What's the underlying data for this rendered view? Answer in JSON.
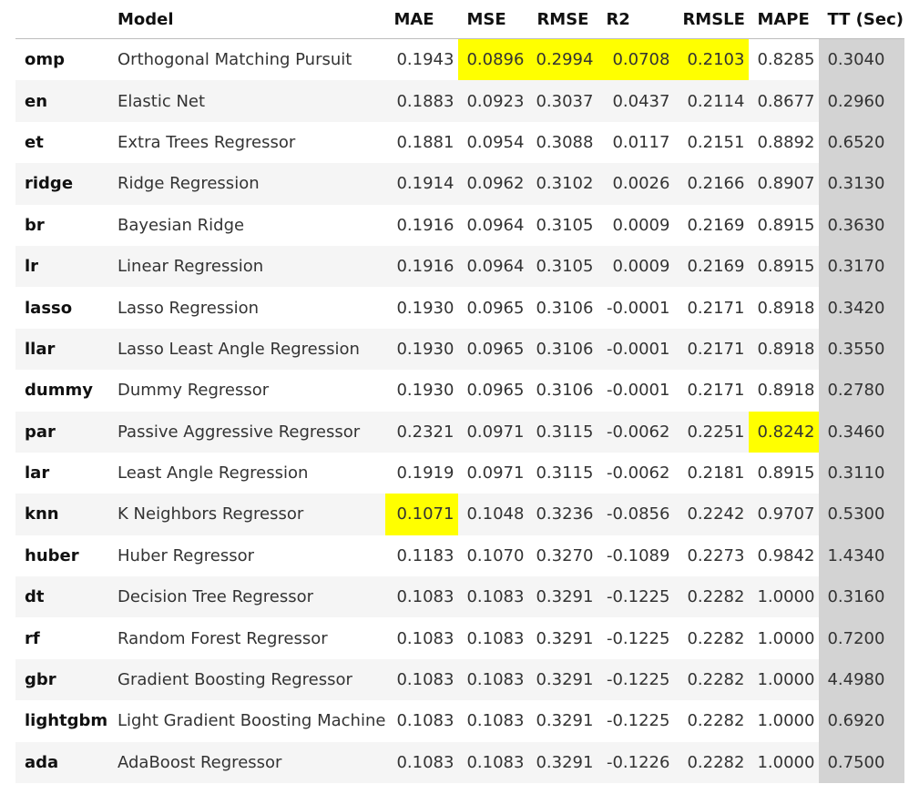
{
  "table": {
    "columns": [
      "",
      "Model",
      "MAE",
      "MSE",
      "RMSE",
      "R2",
      "RMSLE",
      "MAPE",
      "TT (Sec)"
    ],
    "colors": {
      "highlight": "#ffff00",
      "tt_column": "#d3d3d3",
      "stripe": "#f5f5f5"
    },
    "rows": [
      {
        "id": "omp",
        "model": "Orthogonal Matching Pursuit",
        "values": [
          "0.1943",
          "0.0896",
          "0.2994",
          "0.0708",
          "0.2103",
          "0.8285",
          "0.3040"
        ],
        "highlight": [
          1,
          2,
          3,
          4
        ]
      },
      {
        "id": "en",
        "model": "Elastic Net",
        "values": [
          "0.1883",
          "0.0923",
          "0.3037",
          "0.0437",
          "0.2114",
          "0.8677",
          "0.2960"
        ],
        "highlight": []
      },
      {
        "id": "et",
        "model": "Extra Trees Regressor",
        "values": [
          "0.1881",
          "0.0954",
          "0.3088",
          "0.0117",
          "0.2151",
          "0.8892",
          "0.6520"
        ],
        "highlight": []
      },
      {
        "id": "ridge",
        "model": "Ridge Regression",
        "values": [
          "0.1914",
          "0.0962",
          "0.3102",
          "0.0026",
          "0.2166",
          "0.8907",
          "0.3130"
        ],
        "highlight": []
      },
      {
        "id": "br",
        "model": "Bayesian Ridge",
        "values": [
          "0.1916",
          "0.0964",
          "0.3105",
          "0.0009",
          "0.2169",
          "0.8915",
          "0.3630"
        ],
        "highlight": []
      },
      {
        "id": "lr",
        "model": "Linear Regression",
        "values": [
          "0.1916",
          "0.0964",
          "0.3105",
          "0.0009",
          "0.2169",
          "0.8915",
          "0.3170"
        ],
        "highlight": []
      },
      {
        "id": "lasso",
        "model": "Lasso Regression",
        "values": [
          "0.1930",
          "0.0965",
          "0.3106",
          "-0.0001",
          "0.2171",
          "0.8918",
          "0.3420"
        ],
        "highlight": []
      },
      {
        "id": "llar",
        "model": "Lasso Least Angle Regression",
        "values": [
          "0.1930",
          "0.0965",
          "0.3106",
          "-0.0001",
          "0.2171",
          "0.8918",
          "0.3550"
        ],
        "highlight": []
      },
      {
        "id": "dummy",
        "model": "Dummy Regressor",
        "values": [
          "0.1930",
          "0.0965",
          "0.3106",
          "-0.0001",
          "0.2171",
          "0.8918",
          "0.2780"
        ],
        "highlight": []
      },
      {
        "id": "par",
        "model": "Passive Aggressive Regressor",
        "values": [
          "0.2321",
          "0.0971",
          "0.3115",
          "-0.0062",
          "0.2251",
          "0.8242",
          "0.3460"
        ],
        "highlight": [
          5
        ]
      },
      {
        "id": "lar",
        "model": "Least Angle Regression",
        "values": [
          "0.1919",
          "0.0971",
          "0.3115",
          "-0.0062",
          "0.2181",
          "0.8915",
          "0.3110"
        ],
        "highlight": []
      },
      {
        "id": "knn",
        "model": "K Neighbors Regressor",
        "values": [
          "0.1071",
          "0.1048",
          "0.3236",
          "-0.0856",
          "0.2242",
          "0.9707",
          "0.5300"
        ],
        "highlight": [
          0
        ]
      },
      {
        "id": "huber",
        "model": "Huber Regressor",
        "values": [
          "0.1183",
          "0.1070",
          "0.3270",
          "-0.1089",
          "0.2273",
          "0.9842",
          "1.4340"
        ],
        "highlight": []
      },
      {
        "id": "dt",
        "model": "Decision Tree Regressor",
        "values": [
          "0.1083",
          "0.1083",
          "0.3291",
          "-0.1225",
          "0.2282",
          "1.0000",
          "0.3160"
        ],
        "highlight": []
      },
      {
        "id": "rf",
        "model": "Random Forest Regressor",
        "values": [
          "0.1083",
          "0.1083",
          "0.3291",
          "-0.1225",
          "0.2282",
          "1.0000",
          "0.7200"
        ],
        "highlight": []
      },
      {
        "id": "gbr",
        "model": "Gradient Boosting Regressor",
        "values": [
          "0.1083",
          "0.1083",
          "0.3291",
          "-0.1225",
          "0.2282",
          "1.0000",
          "4.4980"
        ],
        "highlight": []
      },
      {
        "id": "lightgbm",
        "model": "Light Gradient Boosting Machine",
        "values": [
          "0.1083",
          "0.1083",
          "0.3291",
          "-0.1225",
          "0.2282",
          "1.0000",
          "0.6920"
        ],
        "highlight": []
      },
      {
        "id": "ada",
        "model": "AdaBoost Regressor",
        "values": [
          "0.1083",
          "0.1083",
          "0.3291",
          "-0.1226",
          "0.2282",
          "1.0000",
          "0.7500"
        ],
        "highlight": []
      }
    ]
  }
}
